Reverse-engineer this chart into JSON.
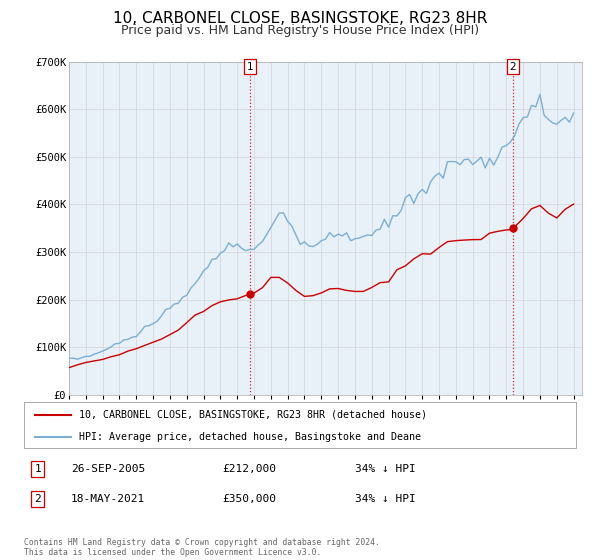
{
  "title": "10, CARBONEL CLOSE, BASINGSTOKE, RG23 8HR",
  "subtitle": "Price paid vs. HM Land Registry's House Price Index (HPI)",
  "ylim": [
    0,
    700000
  ],
  "yticks": [
    0,
    100000,
    200000,
    300000,
    400000,
    500000,
    600000,
    700000
  ],
  "ytick_labels": [
    "£0",
    "£100K",
    "£200K",
    "£300K",
    "£400K",
    "£500K",
    "£600K",
    "£700K"
  ],
  "xlim_start": 1995.0,
  "xlim_end": 2025.5,
  "hpi_color": "#7bafd4",
  "price_color": "#cc0000",
  "marker1_date": 2005.74,
  "marker1_price": 212000,
  "marker2_date": 2021.38,
  "marker2_price": 350000,
  "legend1_label": "10, CARBONEL CLOSE, BASINGSTOKE, RG23 8HR (detached house)",
  "legend2_label": "HPI: Average price, detached house, Basingstoke and Deane",
  "annotation1": [
    "1",
    "26-SEP-2005",
    "£212,000",
    "34% ↓ HPI"
  ],
  "annotation2": [
    "2",
    "18-MAY-2021",
    "£350,000",
    "34% ↓ HPI"
  ],
  "footer1": "Contains HM Land Registry data © Crown copyright and database right 2024.",
  "footer2": "This data is licensed under the Open Government Licence v3.0.",
  "background_color": "#ffffff",
  "plot_bg_color": "#e8f0f8",
  "title_fontsize": 11,
  "subtitle_fontsize": 9,
  "hpi_points": [
    [
      1995.0,
      75000
    ],
    [
      1995.25,
      76000
    ],
    [
      1995.5,
      77000
    ],
    [
      1995.75,
      78000
    ],
    [
      1996.0,
      80000
    ],
    [
      1996.25,
      82000
    ],
    [
      1996.5,
      85000
    ],
    [
      1996.75,
      88000
    ],
    [
      1997.0,
      92000
    ],
    [
      1997.25,
      96000
    ],
    [
      1997.5,
      100000
    ],
    [
      1997.75,
      105000
    ],
    [
      1998.0,
      110000
    ],
    [
      1998.25,
      113000
    ],
    [
      1998.5,
      116000
    ],
    [
      1998.75,
      120000
    ],
    [
      1999.0,
      125000
    ],
    [
      1999.25,
      132000
    ],
    [
      1999.5,
      140000
    ],
    [
      1999.75,
      148000
    ],
    [
      2000.0,
      155000
    ],
    [
      2000.25,
      160000
    ],
    [
      2000.5,
      165000
    ],
    [
      2000.75,
      172000
    ],
    [
      2001.0,
      178000
    ],
    [
      2001.25,
      185000
    ],
    [
      2001.5,
      192000
    ],
    [
      2001.75,
      200000
    ],
    [
      2002.0,
      210000
    ],
    [
      2002.25,
      222000
    ],
    [
      2002.5,
      235000
    ],
    [
      2002.75,
      248000
    ],
    [
      2003.0,
      260000
    ],
    [
      2003.25,
      270000
    ],
    [
      2003.5,
      278000
    ],
    [
      2003.75,
      285000
    ],
    [
      2004.0,
      295000
    ],
    [
      2004.25,
      305000
    ],
    [
      2004.5,
      312000
    ],
    [
      2004.75,
      315000
    ],
    [
      2005.0,
      313000
    ],
    [
      2005.25,
      310000
    ],
    [
      2005.5,
      308000
    ],
    [
      2005.75,
      308000
    ],
    [
      2006.0,
      310000
    ],
    [
      2006.25,
      316000
    ],
    [
      2006.5,
      324000
    ],
    [
      2006.75,
      335000
    ],
    [
      2007.0,
      348000
    ],
    [
      2007.25,
      368000
    ],
    [
      2007.5,
      382000
    ],
    [
      2007.75,
      380000
    ],
    [
      2008.0,
      368000
    ],
    [
      2008.25,
      350000
    ],
    [
      2008.5,
      330000
    ],
    [
      2008.75,
      315000
    ],
    [
      2009.0,
      308000
    ],
    [
      2009.25,
      308000
    ],
    [
      2009.5,
      312000
    ],
    [
      2009.75,
      318000
    ],
    [
      2010.0,
      325000
    ],
    [
      2010.25,
      330000
    ],
    [
      2010.5,
      334000
    ],
    [
      2010.75,
      336000
    ],
    [
      2011.0,
      338000
    ],
    [
      2011.25,
      337000
    ],
    [
      2011.5,
      334000
    ],
    [
      2011.75,
      332000
    ],
    [
      2012.0,
      330000
    ],
    [
      2012.25,
      330000
    ],
    [
      2012.5,
      331000
    ],
    [
      2012.75,
      333000
    ],
    [
      2013.0,
      336000
    ],
    [
      2013.25,
      340000
    ],
    [
      2013.5,
      346000
    ],
    [
      2013.75,
      353000
    ],
    [
      2014.0,
      362000
    ],
    [
      2014.25,
      372000
    ],
    [
      2014.5,
      383000
    ],
    [
      2014.75,
      393000
    ],
    [
      2015.0,
      400000
    ],
    [
      2015.25,
      408000
    ],
    [
      2015.5,
      416000
    ],
    [
      2015.75,
      424000
    ],
    [
      2016.0,
      432000
    ],
    [
      2016.25,
      440000
    ],
    [
      2016.5,
      448000
    ],
    [
      2016.75,
      456000
    ],
    [
      2017.0,
      464000
    ],
    [
      2017.25,
      472000
    ],
    [
      2017.5,
      480000
    ],
    [
      2017.75,
      488000
    ],
    [
      2018.0,
      490000
    ],
    [
      2018.25,
      490000
    ],
    [
      2018.5,
      488000
    ],
    [
      2018.75,
      487000
    ],
    [
      2019.0,
      488000
    ],
    [
      2019.25,
      490000
    ],
    [
      2019.5,
      492000
    ],
    [
      2019.75,
      494000
    ],
    [
      2020.0,
      496000
    ],
    [
      2020.25,
      500000
    ],
    [
      2020.5,
      508000
    ],
    [
      2020.75,
      516000
    ],
    [
      2021.0,
      525000
    ],
    [
      2021.25,
      535000
    ],
    [
      2021.5,
      548000
    ],
    [
      2021.75,
      560000
    ],
    [
      2022.0,
      575000
    ],
    [
      2022.25,
      592000
    ],
    [
      2022.5,
      605000
    ],
    [
      2022.75,
      610000
    ],
    [
      2023.0,
      605000
    ],
    [
      2023.25,
      595000
    ],
    [
      2023.5,
      582000
    ],
    [
      2023.75,
      575000
    ],
    [
      2024.0,
      573000
    ],
    [
      2024.25,
      575000
    ],
    [
      2024.5,
      580000
    ],
    [
      2024.75,
      590000
    ],
    [
      2025.0,
      598000
    ]
  ],
  "price_points": [
    [
      1995.0,
      58000
    ],
    [
      1995.5,
      62000
    ],
    [
      1996.0,
      66000
    ],
    [
      1996.5,
      70000
    ],
    [
      1997.0,
      74000
    ],
    [
      1997.5,
      79000
    ],
    [
      1998.0,
      84000
    ],
    [
      1998.5,
      90000
    ],
    [
      1999.0,
      96000
    ],
    [
      1999.5,
      104000
    ],
    [
      2000.0,
      112000
    ],
    [
      2000.5,
      118000
    ],
    [
      2001.0,
      126000
    ],
    [
      2001.5,
      138000
    ],
    [
      2002.0,
      152000
    ],
    [
      2002.5,
      165000
    ],
    [
      2003.0,
      175000
    ],
    [
      2003.5,
      183000
    ],
    [
      2004.0,
      192000
    ],
    [
      2004.5,
      200000
    ],
    [
      2005.0,
      205000
    ],
    [
      2005.74,
      212000
    ],
    [
      2006.0,
      215000
    ],
    [
      2006.5,
      224000
    ],
    [
      2007.0,
      242000
    ],
    [
      2007.5,
      250000
    ],
    [
      2008.0,
      236000
    ],
    [
      2008.5,
      218000
    ],
    [
      2009.0,
      204000
    ],
    [
      2009.5,
      207000
    ],
    [
      2010.0,
      213000
    ],
    [
      2010.5,
      219000
    ],
    [
      2011.0,
      222000
    ],
    [
      2011.5,
      220000
    ],
    [
      2012.0,
      217000
    ],
    [
      2012.5,
      219000
    ],
    [
      2013.0,
      224000
    ],
    [
      2013.5,
      233000
    ],
    [
      2014.0,
      246000
    ],
    [
      2014.5,
      259000
    ],
    [
      2015.0,
      271000
    ],
    [
      2015.5,
      284000
    ],
    [
      2016.0,
      294000
    ],
    [
      2016.5,
      304000
    ],
    [
      2017.0,
      314000
    ],
    [
      2017.5,
      323000
    ],
    [
      2018.0,
      327000
    ],
    [
      2018.5,
      324000
    ],
    [
      2019.0,
      328000
    ],
    [
      2019.5,
      333000
    ],
    [
      2020.0,
      337000
    ],
    [
      2020.5,
      339000
    ],
    [
      2021.0,
      344000
    ],
    [
      2021.38,
      350000
    ],
    [
      2021.5,
      354000
    ],
    [
      2022.0,
      368000
    ],
    [
      2022.5,
      388000
    ],
    [
      2023.0,
      393000
    ],
    [
      2023.5,
      383000
    ],
    [
      2024.0,
      378000
    ],
    [
      2024.5,
      393000
    ],
    [
      2025.0,
      398000
    ]
  ]
}
